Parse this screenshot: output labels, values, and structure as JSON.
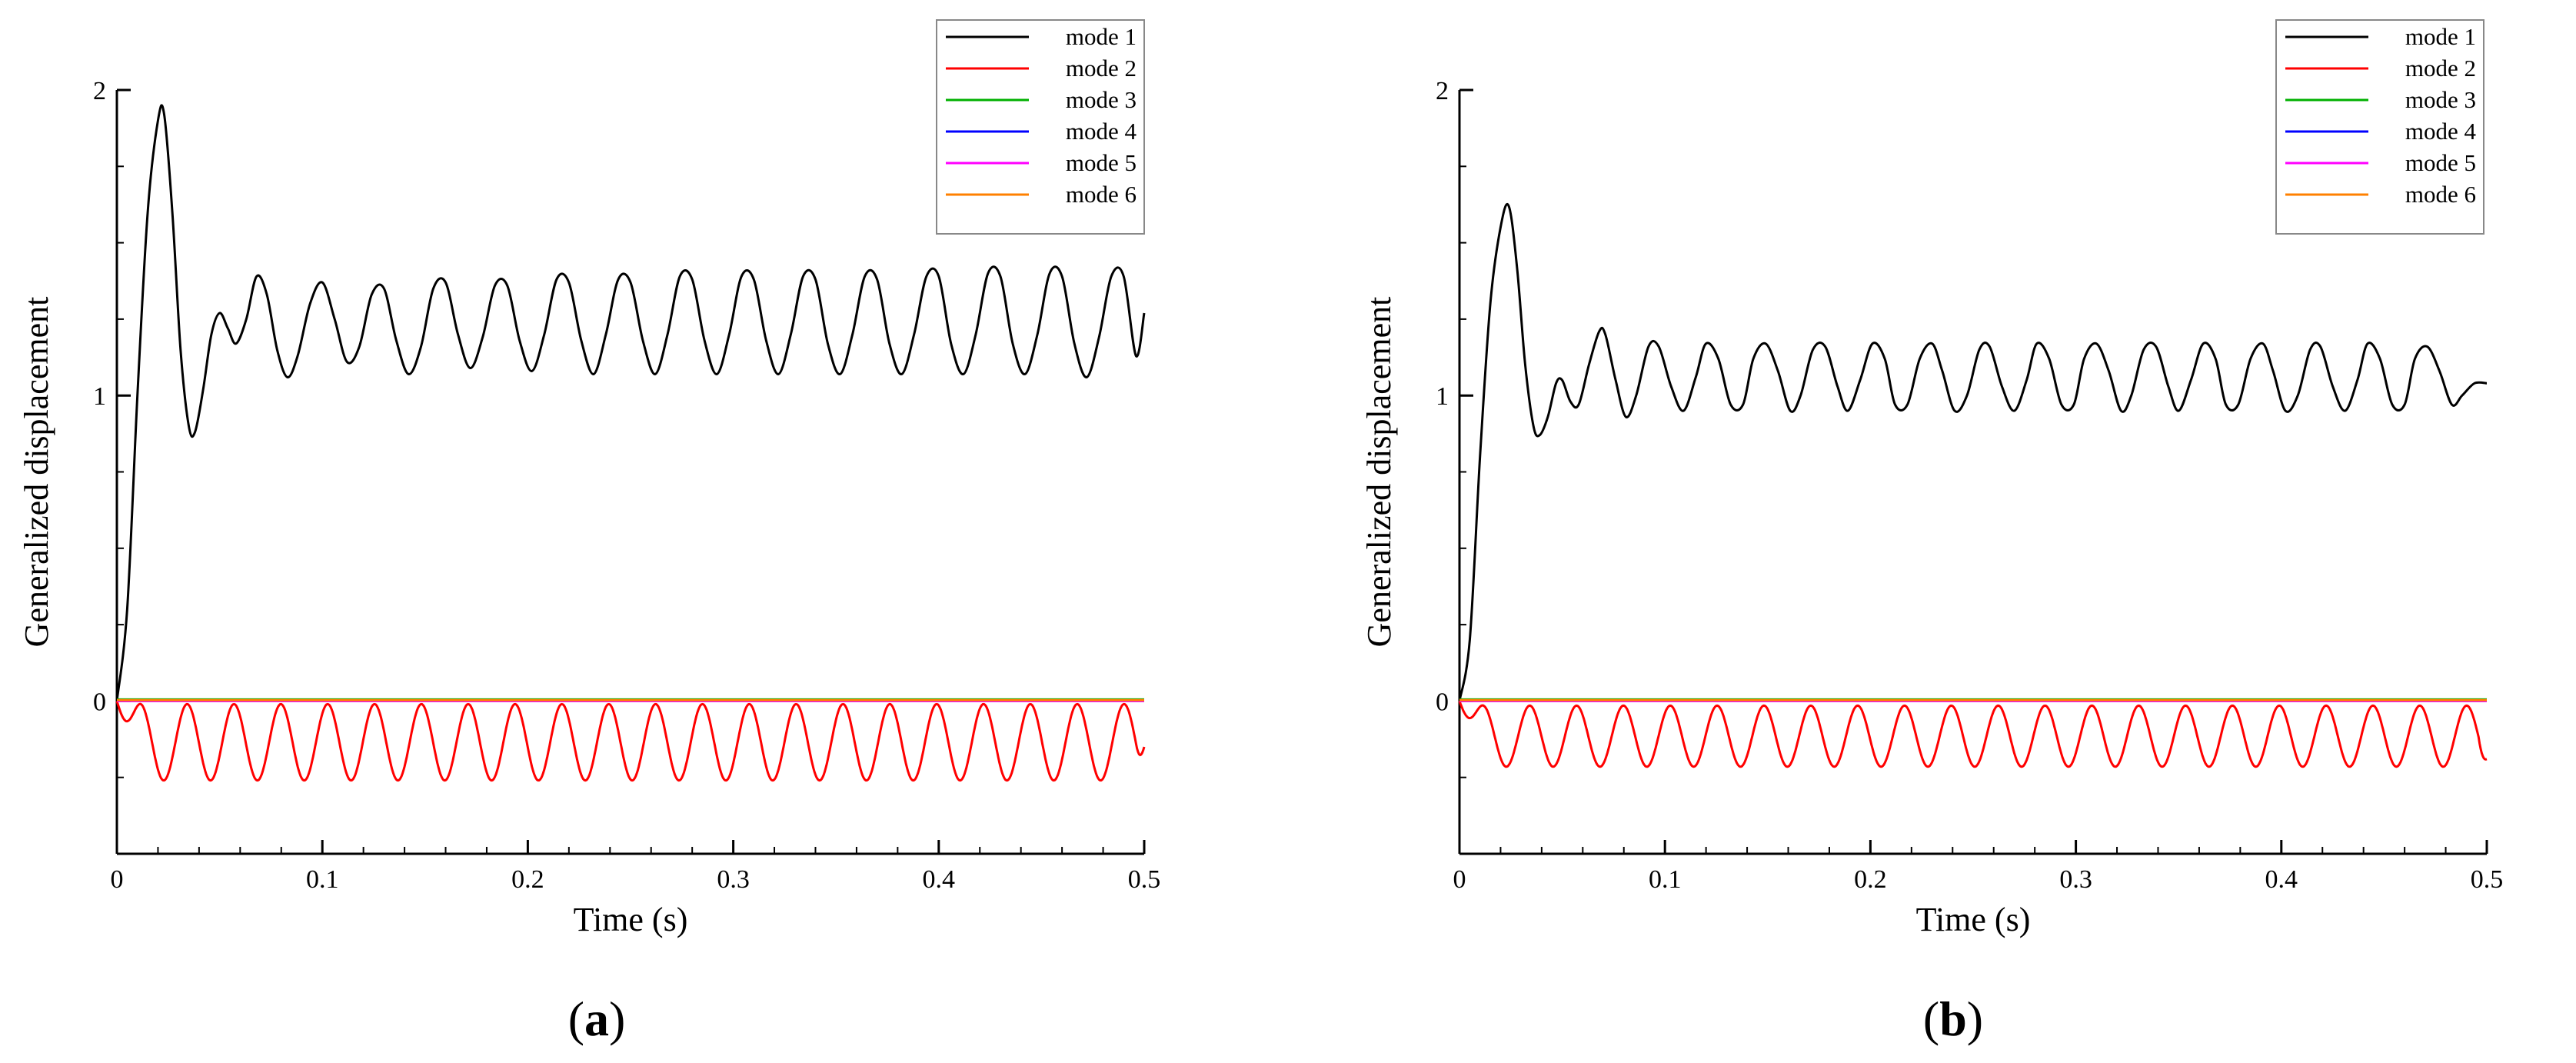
{
  "chart_data": [
    {
      "type": "line",
      "panel_caption": {
        "open": "(",
        "letter": "a",
        "close": ")"
      },
      "xlabel": "Time (s)",
      "ylabel": "Generalized displacement",
      "xlim": [
        0,
        0.5
      ],
      "ylim": [
        -0.5,
        2.0
      ],
      "xticks": [
        0,
        0.1,
        0.2,
        0.3,
        0.4,
        0.5
      ],
      "xtick_labels": [
        "0",
        "0.1",
        "0.2",
        "0.3",
        "0.4",
        "0.5"
      ],
      "yticks": [
        0,
        1,
        2
      ],
      "ytick_labels": [
        "0",
        "1",
        "2"
      ],
      "legend_position": "top-right",
      "series": [
        {
          "name": "mode 1",
          "color": "#000000",
          "t": [
            0,
            0.005,
            0.01,
            0.015,
            0.02,
            0.023,
            0.027,
            0.031,
            0.035,
            0.038,
            0.042,
            0.046,
            0.05,
            0.054,
            0.058,
            0.063,
            0.068,
            0.073,
            0.078,
            0.083,
            0.088,
            0.094,
            0.1,
            0.106,
            0.112,
            0.118,
            0.124,
            0.13,
            0.136,
            0.142,
            0.148,
            0.154,
            0.16,
            0.166,
            0.172,
            0.178,
            0.184,
            0.19,
            0.196,
            0.202,
            0.208,
            0.214,
            0.22,
            0.226,
            0.232,
            0.238,
            0.244,
            0.25,
            0.256,
            0.262,
            0.268,
            0.274,
            0.28,
            0.286,
            0.292,
            0.298,
            0.304,
            0.31,
            0.316,
            0.322,
            0.328,
            0.334,
            0.34,
            0.346,
            0.352,
            0.358,
            0.364,
            0.37,
            0.376,
            0.382,
            0.388,
            0.394,
            0.4,
            0.406,
            0.412,
            0.418,
            0.424,
            0.43,
            0.436,
            0.442,
            0.448,
            0.454,
            0.46,
            0.466,
            0.472,
            0.478,
            0.484,
            0.49,
            0.496,
            0.5
          ],
          "y": [
            0,
            0.3,
            1.0,
            1.6,
            1.9,
            1.92,
            1.6,
            1.15,
            0.9,
            0.88,
            1.02,
            1.2,
            1.27,
            1.22,
            1.17,
            1.25,
            1.39,
            1.33,
            1.15,
            1.06,
            1.13,
            1.3,
            1.37,
            1.25,
            1.11,
            1.16,
            1.33,
            1.35,
            1.18,
            1.07,
            1.16,
            1.35,
            1.37,
            1.2,
            1.09,
            1.19,
            1.36,
            1.36,
            1.18,
            1.08,
            1.2,
            1.38,
            1.37,
            1.18,
            1.07,
            1.2,
            1.38,
            1.37,
            1.18,
            1.07,
            1.2,
            1.39,
            1.38,
            1.18,
            1.07,
            1.2,
            1.39,
            1.38,
            1.18,
            1.07,
            1.2,
            1.39,
            1.38,
            1.17,
            1.07,
            1.2,
            1.39,
            1.38,
            1.17,
            1.07,
            1.2,
            1.39,
            1.39,
            1.17,
            1.07,
            1.2,
            1.4,
            1.39,
            1.17,
            1.07,
            1.2,
            1.4,
            1.39,
            1.17,
            1.06,
            1.19,
            1.39,
            1.39,
            1.13,
            1.27
          ]
        },
        {
          "name": "mode 2",
          "color": "#ff0000",
          "period": 0.0228,
          "amplitude": -0.125,
          "offset": -0.135,
          "end_value": -0.15
        },
        {
          "name": "mode 3",
          "color": "#00b000",
          "constant": 0.005
        },
        {
          "name": "mode 4",
          "color": "#0000ff",
          "constant": 0.0
        },
        {
          "name": "mode 5",
          "color": "#ff00ff",
          "constant": 0.0
        },
        {
          "name": "mode 6",
          "color": "#ff8000",
          "constant": 0.003
        }
      ]
    },
    {
      "type": "line",
      "panel_caption": {
        "open": "(",
        "letter": "b",
        "close": ")"
      },
      "xlabel": "Time (s)",
      "ylabel": "Generalized displacement",
      "xlim": [
        0,
        0.5
      ],
      "ylim": [
        -0.5,
        2.0
      ],
      "xticks": [
        0,
        0.1,
        0.2,
        0.3,
        0.4,
        0.5
      ],
      "xtick_labels": [
        "0",
        "0.1",
        "0.2",
        "0.3",
        "0.4",
        "0.5"
      ],
      "yticks": [
        0,
        1,
        2
      ],
      "ytick_labels": [
        "0",
        "1",
        "2"
      ],
      "legend_position": "top-right",
      "series": [
        {
          "name": "mode 1",
          "color": "#000000",
          "t": [
            0,
            0.005,
            0.01,
            0.015,
            0.02,
            0.024,
            0.028,
            0.032,
            0.036,
            0.039,
            0.043,
            0.047,
            0.05,
            0.054,
            0.058,
            0.063,
            0.068,
            0.071,
            0.076,
            0.081,
            0.086,
            0.092,
            0.097,
            0.103,
            0.109,
            0.115,
            0.12,
            0.126,
            0.132,
            0.138,
            0.143,
            0.149,
            0.155,
            0.161,
            0.166,
            0.172,
            0.178,
            0.184,
            0.189,
            0.195,
            0.201,
            0.207,
            0.212,
            0.218,
            0.224,
            0.23,
            0.235,
            0.241,
            0.247,
            0.253,
            0.258,
            0.264,
            0.27,
            0.276,
            0.281,
            0.287,
            0.293,
            0.299,
            0.304,
            0.31,
            0.316,
            0.322,
            0.327,
            0.333,
            0.339,
            0.345,
            0.35,
            0.356,
            0.362,
            0.368,
            0.373,
            0.379,
            0.385,
            0.391,
            0.396,
            0.402,
            0.408,
            0.414,
            0.419,
            0.425,
            0.431,
            0.437,
            0.442,
            0.448,
            0.454,
            0.46,
            0.465,
            0.471,
            0.477,
            0.483,
            0.488,
            0.494,
            0.5
          ],
          "y": [
            0,
            0.2,
            0.8,
            1.3,
            1.55,
            1.62,
            1.42,
            1.1,
            0.9,
            0.87,
            0.93,
            1.04,
            1.05,
            0.98,
            0.97,
            1.1,
            1.21,
            1.2,
            1.05,
            0.93,
            1.0,
            1.16,
            1.16,
            1.03,
            0.95,
            1.06,
            1.17,
            1.12,
            0.97,
            0.97,
            1.12,
            1.17,
            1.08,
            0.95,
            1.0,
            1.15,
            1.16,
            1.03,
            0.95,
            1.05,
            1.17,
            1.12,
            0.97,
            0.97,
            1.12,
            1.17,
            1.08,
            0.95,
            1.0,
            1.15,
            1.16,
            1.03,
            0.95,
            1.05,
            1.17,
            1.12,
            0.97,
            0.97,
            1.12,
            1.17,
            1.08,
            0.95,
            1.0,
            1.15,
            1.16,
            1.03,
            0.95,
            1.05,
            1.17,
            1.12,
            0.97,
            0.97,
            1.12,
            1.17,
            1.08,
            0.95,
            1.0,
            1.15,
            1.16,
            1.03,
            0.95,
            1.05,
            1.17,
            1.12,
            0.97,
            0.97,
            1.12,
            1.16,
            1.08,
            0.97,
            1.0,
            1.04,
            1.04
          ]
        },
        {
          "name": "mode 2",
          "color": "#ff0000",
          "period": 0.0228,
          "amplitude": -0.1,
          "offset": -0.115,
          "end_value": -0.19
        },
        {
          "name": "mode 3",
          "color": "#00b000",
          "constant": 0.005
        },
        {
          "name": "mode 4",
          "color": "#0000ff",
          "constant": 0.0
        },
        {
          "name": "mode 5",
          "color": "#ff00ff",
          "constant": 0.0
        },
        {
          "name": "mode 6",
          "color": "#ff8000",
          "constant": 0.003
        }
      ]
    }
  ]
}
